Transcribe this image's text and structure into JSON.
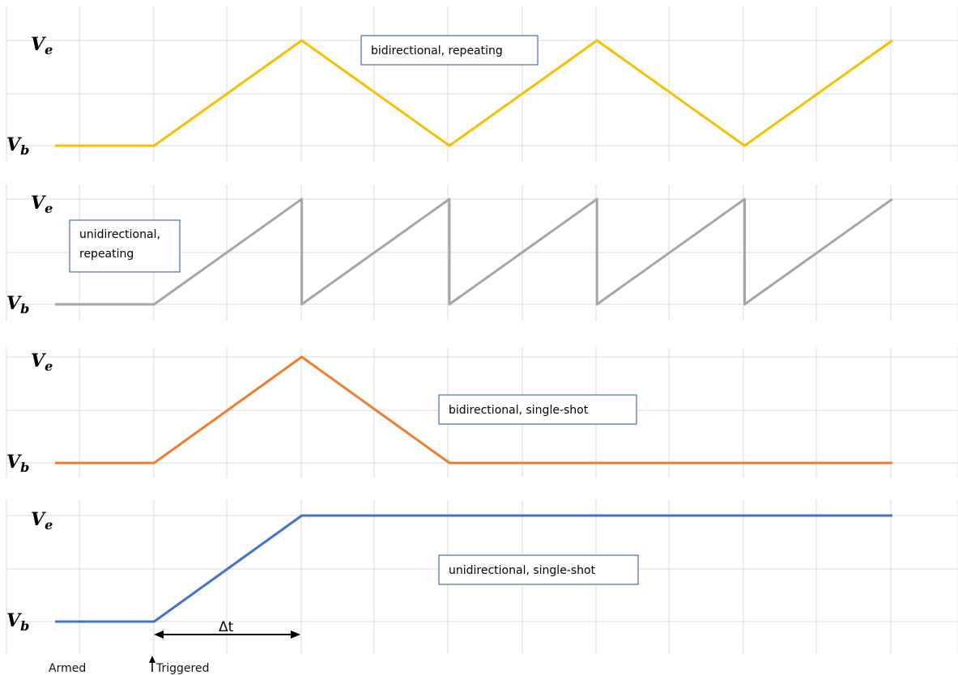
{
  "panels": [
    {
      "id": "bidirectional-repeating",
      "mode": "bidirectional, repeating",
      "label_lines": [
        "bidirectional, repeating"
      ],
      "color": "#f5c000",
      "v_top": "V",
      "v_top_sub": "e",
      "v_bot": "V",
      "v_bot_sub": "b",
      "waveform": [
        [
          0,
          0
        ],
        [
          1,
          0
        ],
        [
          2,
          1
        ],
        [
          3,
          0
        ],
        [
          4,
          1
        ],
        [
          5,
          0
        ],
        [
          6,
          1
        ]
      ],
      "verticals": []
    },
    {
      "id": "unidirectional-repeating",
      "mode": "unidirectional, repeating",
      "label_lines": [
        "unidirectional,",
        "repeating"
      ],
      "color": "#a6a6a6",
      "v_top": "V",
      "v_top_sub": "e",
      "v_bot": "V",
      "v_bot_sub": "b",
      "waveform": [
        [
          0,
          0
        ],
        [
          1,
          0
        ],
        [
          2,
          1
        ],
        [
          2,
          0
        ],
        [
          3,
          1
        ],
        [
          3,
          0
        ],
        [
          4,
          1
        ],
        [
          4,
          0
        ],
        [
          5,
          1
        ],
        [
          5,
          0
        ],
        [
          6,
          1
        ]
      ],
      "verticals": [
        2,
        3,
        4,
        5
      ]
    },
    {
      "id": "bidirectional-single-shot",
      "mode": "bidirectional, single-shot",
      "label_lines": [
        "bidirectional, single-shot"
      ],
      "color": "#ed7d31",
      "v_top": "V",
      "v_top_sub": "e",
      "v_bot": "V",
      "v_bot_sub": "b",
      "waveform": [
        [
          0,
          0
        ],
        [
          1,
          0
        ],
        [
          2,
          1
        ],
        [
          3,
          0
        ],
        [
          6,
          0
        ]
      ],
      "verticals": []
    },
    {
      "id": "unidirectional-single-shot",
      "mode": "unidirectional, single-shot",
      "label_lines": [
        "unidirectional,  single-shot"
      ],
      "color": "#4472c4",
      "v_top": "V",
      "v_top_sub": "e",
      "v_bot": "V",
      "v_bot_sub": "b",
      "waveform": [
        [
          0,
          0
        ],
        [
          1,
          0
        ],
        [
          2,
          1
        ],
        [
          6,
          1
        ]
      ],
      "verticals": []
    }
  ],
  "annotations": {
    "armed": "Armed",
    "triggered": "Triggered",
    "delta_t": "Δt"
  }
}
